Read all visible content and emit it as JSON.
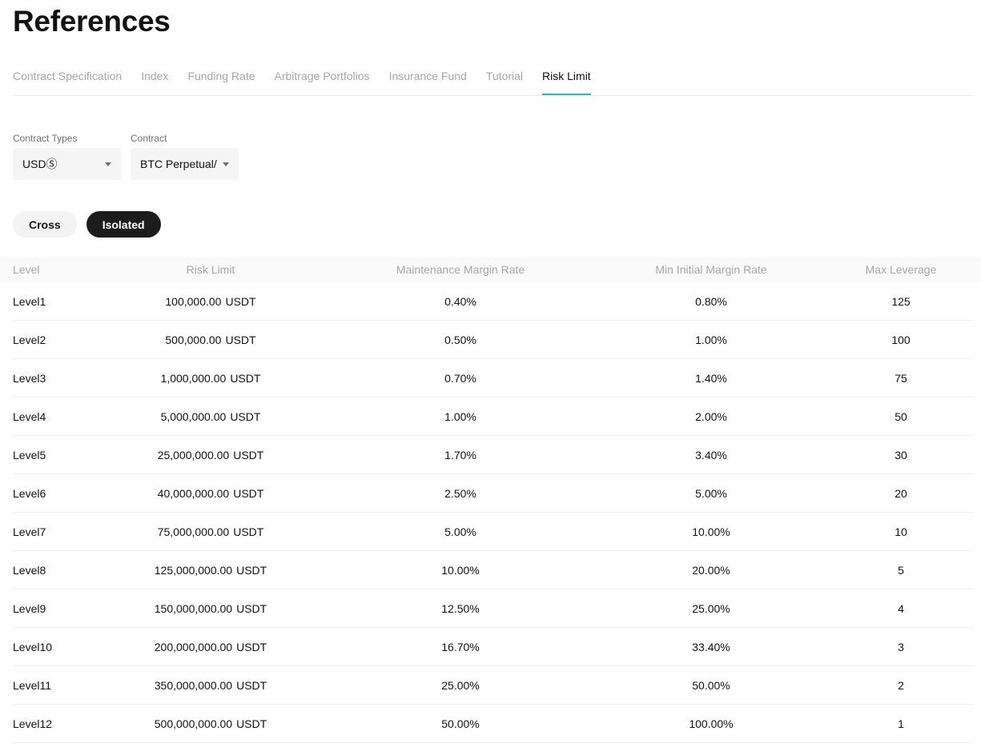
{
  "page": {
    "title": "References"
  },
  "tabs": [
    {
      "label": "Contract Specification",
      "active": false
    },
    {
      "label": "Index",
      "active": false
    },
    {
      "label": "Funding Rate",
      "active": false
    },
    {
      "label": "Arbitrage Portfolios",
      "active": false
    },
    {
      "label": "Insurance Fund",
      "active": false
    },
    {
      "label": "Tutorial",
      "active": false
    },
    {
      "label": "Risk Limit",
      "active": true
    }
  ],
  "colors": {
    "accent": "#22c2a0",
    "active_pill": "#1c1c1c",
    "text": "#121212",
    "muted": "#a7a7a7"
  },
  "filters": {
    "contract_types": {
      "label": "Contract Types",
      "value": "USDⓈ",
      "icon": "chevron-down-icon"
    },
    "contract": {
      "label": "Contract",
      "value": "BTC Perpetual/",
      "icon": "chevron-down-icon"
    }
  },
  "margin_mode": {
    "cross": "Cross",
    "isolated": "Isolated",
    "selected": "Isolated"
  },
  "table": {
    "headers": {
      "level": "Level",
      "risk_limit": "Risk Limit",
      "maintenance_margin_rate": "Maintenance Margin Rate",
      "min_initial_margin_rate": "Min Initial Margin Rate",
      "max_leverage": "Max Leverage"
    },
    "rows": [
      {
        "level": "Level1",
        "risk_limit": "100,000.00",
        "unit": "USDT",
        "mmr": "0.40%",
        "imr": "0.80%",
        "leverage": "125"
      },
      {
        "level": "Level2",
        "risk_limit": "500,000.00",
        "unit": "USDT",
        "mmr": "0.50%",
        "imr": "1.00%",
        "leverage": "100"
      },
      {
        "level": "Level3",
        "risk_limit": "1,000,000.00",
        "unit": "USDT",
        "mmr": "0.70%",
        "imr": "1.40%",
        "leverage": "75"
      },
      {
        "level": "Level4",
        "risk_limit": "5,000,000.00",
        "unit": "USDT",
        "mmr": "1.00%",
        "imr": "2.00%",
        "leverage": "50"
      },
      {
        "level": "Level5",
        "risk_limit": "25,000,000.00",
        "unit": "USDT",
        "mmr": "1.70%",
        "imr": "3.40%",
        "leverage": "30"
      },
      {
        "level": "Level6",
        "risk_limit": "40,000,000.00",
        "unit": "USDT",
        "mmr": "2.50%",
        "imr": "5.00%",
        "leverage": "20"
      },
      {
        "level": "Level7",
        "risk_limit": "75,000,000.00",
        "unit": "USDT",
        "mmr": "5.00%",
        "imr": "10.00%",
        "leverage": "10"
      },
      {
        "level": "Level8",
        "risk_limit": "125,000,000.00",
        "unit": "USDT",
        "mmr": "10.00%",
        "imr": "20.00%",
        "leverage": "5"
      },
      {
        "level": "Level9",
        "risk_limit": "150,000,000.00",
        "unit": "USDT",
        "mmr": "12.50%",
        "imr": "25.00%",
        "leverage": "4"
      },
      {
        "level": "Level10",
        "risk_limit": "200,000,000.00",
        "unit": "USDT",
        "mmr": "16.70%",
        "imr": "33.40%",
        "leverage": "3"
      },
      {
        "level": "Level11",
        "risk_limit": "350,000,000.00",
        "unit": "USDT",
        "mmr": "25.00%",
        "imr": "50.00%",
        "leverage": "2"
      },
      {
        "level": "Level12",
        "risk_limit": "500,000,000.00",
        "unit": "USDT",
        "mmr": "50.00%",
        "imr": "100.00%",
        "leverage": "1"
      }
    ]
  }
}
